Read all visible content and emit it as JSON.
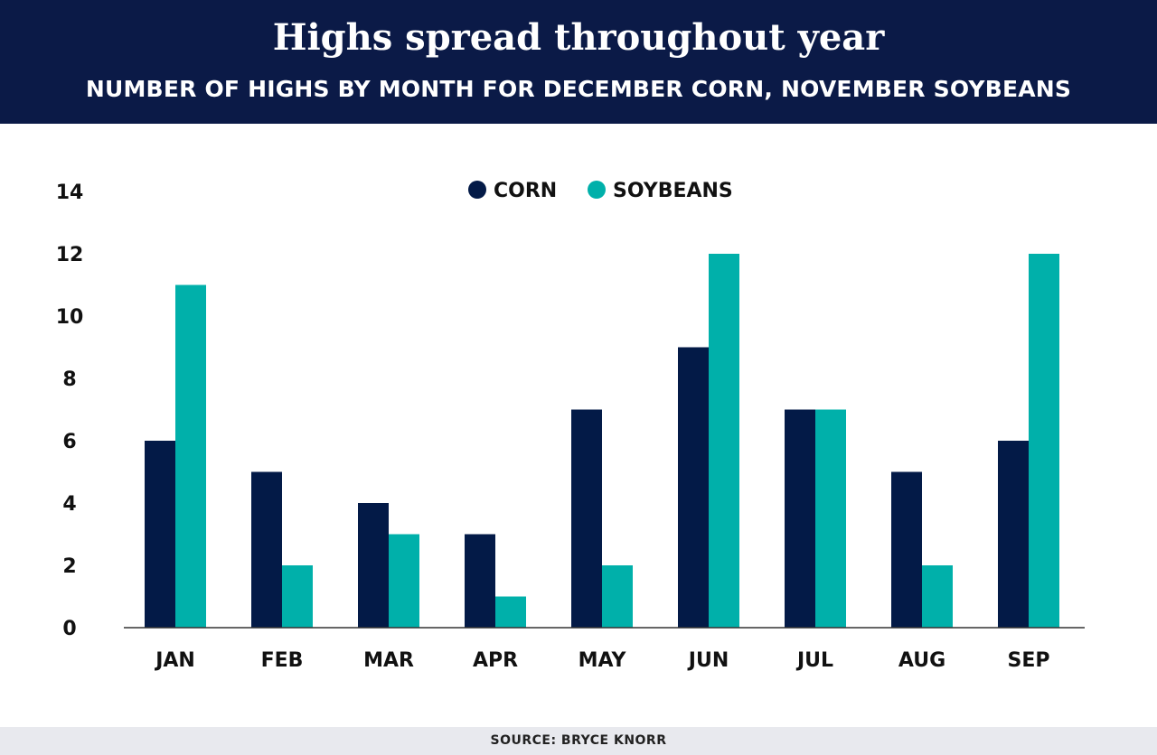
{
  "header": {
    "title": "Highs spread throughout year",
    "subtitle": "NUMBER OF HIGHS BY MONTH FOR DECEMBER CORN, NOVEMBER SOYBEANS"
  },
  "footer": {
    "source": "SOURCE: BRYCE KNORR"
  },
  "chart_data": {
    "type": "bar",
    "title": "Highs spread throughout year",
    "subtitle": "NUMBER OF HIGHS BY MONTH FOR DECEMBER CORN, NOVEMBER SOYBEANS",
    "categories": [
      "JAN",
      "FEB",
      "MAR",
      "APR",
      "MAY",
      "JUN",
      "JUL",
      "AUG",
      "SEP"
    ],
    "series": [
      {
        "name": "CORN",
        "color": "#031a47",
        "values": [
          6,
          5,
          4,
          3,
          7,
          9,
          7,
          5,
          6
        ]
      },
      {
        "name": "SOYBEANS",
        "color": "#00b0aa",
        "values": [
          11,
          2,
          3,
          1,
          2,
          12,
          7,
          2,
          12
        ]
      }
    ],
    "ylim": [
      0,
      14
    ],
    "yticks": [
      0,
      2,
      4,
      6,
      8,
      10,
      12,
      14
    ],
    "grid": false,
    "legend": "top-center",
    "xlabel": "",
    "ylabel": ""
  }
}
